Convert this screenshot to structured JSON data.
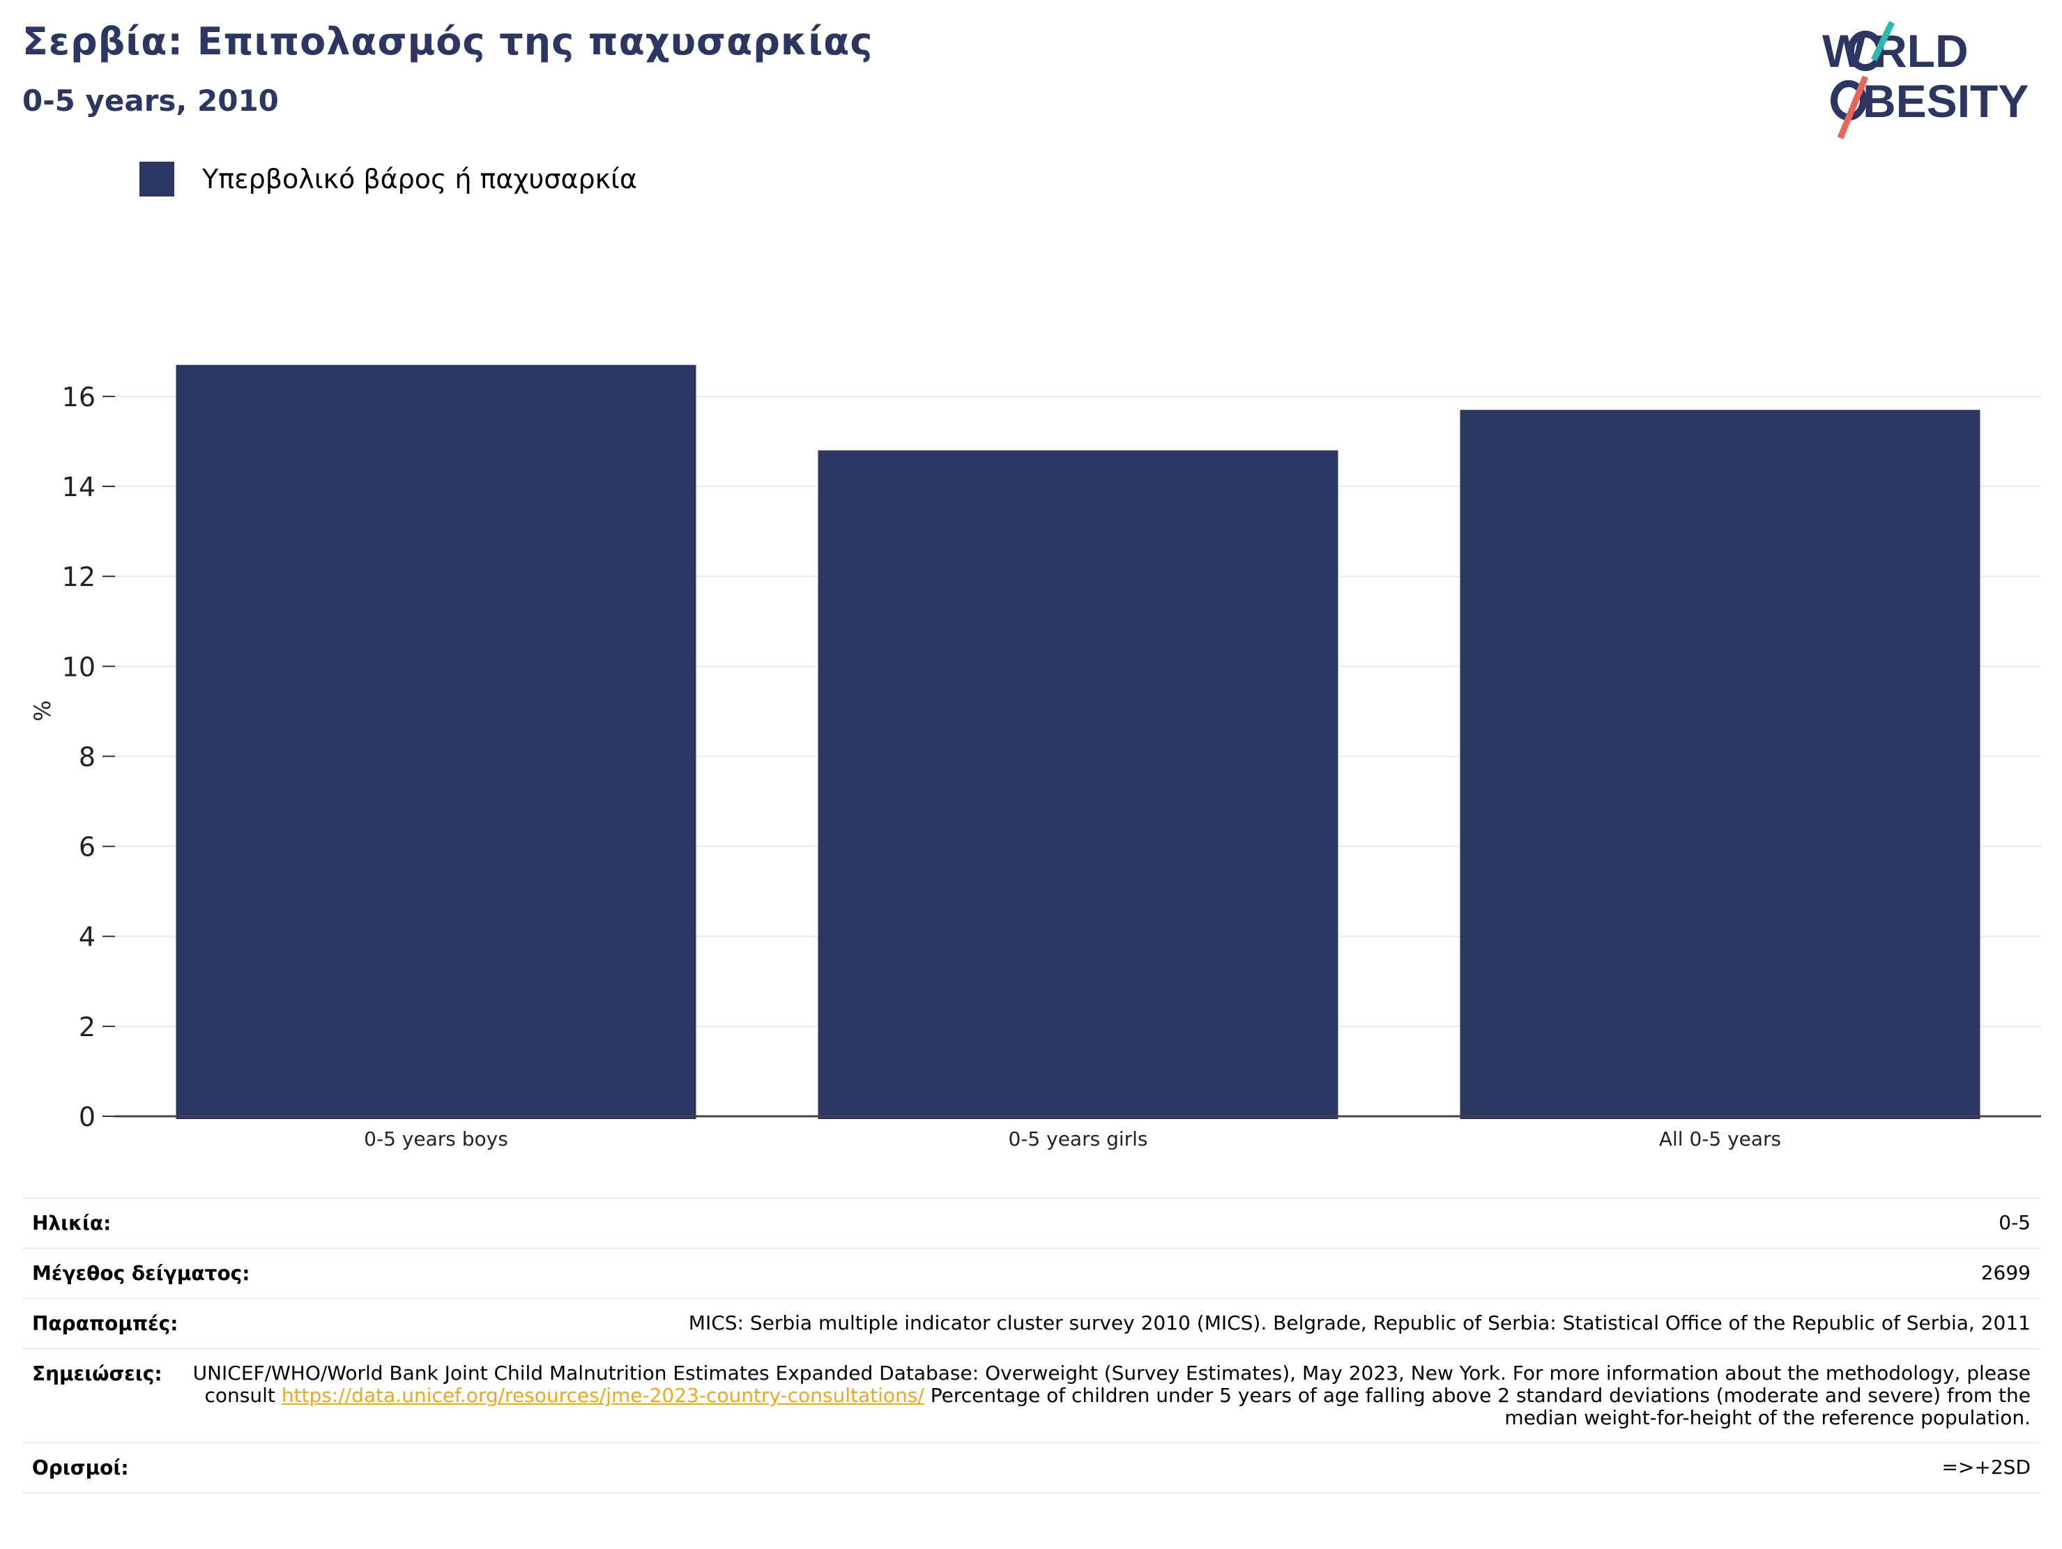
{
  "header": {
    "title": "Σερβία: Επιπολασμός της παχυσαρκίας",
    "subtitle": "0-5 years, 2010",
    "logo_text": "WORLD OBESITY"
  },
  "legend": {
    "label": "Υπερβολικό βάρος ή παχυσαρκία",
    "color": "#2b3663"
  },
  "chart_data": {
    "type": "bar",
    "categories": [
      "0-5 years boys",
      "0-5 years girls",
      "All 0-5 years"
    ],
    "series": [
      {
        "name": "Υπερβολικό βάρος ή παχυσαρκία",
        "values": [
          16.7,
          14.8,
          15.7
        ]
      }
    ],
    "ylabel": "%",
    "xlabel": "",
    "ylim": [
      0,
      17.5
    ],
    "yticks": [
      0,
      2,
      4,
      6,
      8,
      10,
      12,
      14,
      16
    ],
    "grid": true,
    "legend_position": "top-left",
    "bar_color": "#2b3663"
  },
  "info": {
    "age_label": "Ηλικία:",
    "age_value": "0-5",
    "sample_label": "Μέγεθος δείγματος:",
    "sample_value": "2699",
    "refs_label": "Παραπομπές:",
    "refs_value": "MICS: Serbia multiple indicator cluster survey 2010 (MICS). Belgrade, Republic of Serbia: Statistical Office of the Republic of Serbia, 2011",
    "notes_label": "Σημειώσεις:",
    "notes_before": "UNICEF/WHO/World Bank Joint Child Malnutrition Estimates Expanded Database: Overweight (Survey Estimates), May 2023, New York. For more information about the methodology, please consult",
    "notes_link": "https://data.unicef.org/resources/jme-2023-country-consultations/",
    "notes_after": "Percentage of children under 5 years of age falling above 2 standard deviations (moderate and severe) from the median weight-for-height of the reference population.",
    "defs_label": "Ορισμοί:",
    "defs_value": "=>+2SD"
  }
}
